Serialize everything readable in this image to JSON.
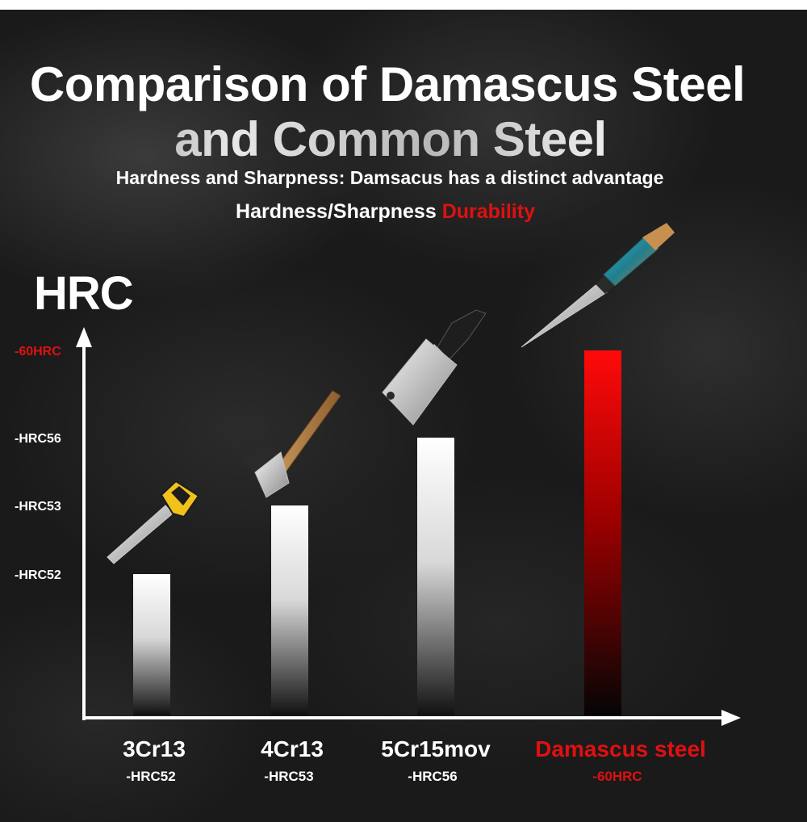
{
  "header": {
    "title_line1": "Comparison of Damascus Steel",
    "title_line2": "and Common Steel",
    "subtitle": "Hardness and Sharpness: Damsacus has a distinct advantage",
    "subline_white": "Hardness/Sharpness",
    "subline_red": "Durability"
  },
  "colors": {
    "accent_red": "#e01010",
    "white": "#ffffff",
    "background": "#1a1a1a"
  },
  "chart_data": {
    "type": "bar",
    "ylabel": "HRC",
    "ylim": [
      48,
      60
    ],
    "yticks": [
      {
        "value": 52,
        "label": "-HRC52",
        "highlight": false
      },
      {
        "value": 53,
        "label": "-HRC53",
        "highlight": false
      },
      {
        "value": 56,
        "label": "-HRC56",
        "highlight": false
      },
      {
        "value": 60,
        "label": "-60HRC",
        "highlight": true
      }
    ],
    "categories": [
      "3Cr13",
      "4Cr13",
      "5Cr15mov",
      "Damascus steel"
    ],
    "value_labels": [
      "-HRC52",
      "-HRC53",
      "-HRC56",
      "-60HRC"
    ],
    "values": [
      52,
      53,
      56,
      60
    ],
    "highlight": [
      false,
      false,
      false,
      true
    ],
    "icons": [
      "saw-icon",
      "axe-icon",
      "cleaver-icon",
      "chef-knife-icon"
    ]
  }
}
